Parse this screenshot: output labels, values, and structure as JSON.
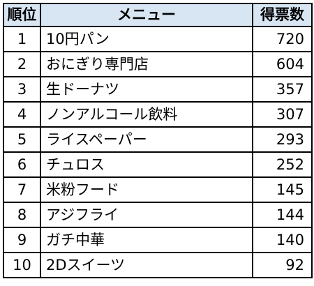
{
  "header": {
    "rank": "順位",
    "menu": "メニュー",
    "votes": "得票数"
  },
  "rows": [
    {
      "rank": "1",
      "menu": "10円パン",
      "votes": "720"
    },
    {
      "rank": "2",
      "menu": "おにぎり専門店",
      "votes": "604"
    },
    {
      "rank": "3",
      "menu": "生ドーナツ",
      "votes": "357"
    },
    {
      "rank": "4",
      "menu": "ノンアルコール飲料",
      "votes": "307"
    },
    {
      "rank": "5",
      "menu": "ライスペーパー",
      "votes": "293"
    },
    {
      "rank": "6",
      "menu": "チュロス",
      "votes": "252"
    },
    {
      "rank": "7",
      "menu": "米粉フード",
      "votes": "145"
    },
    {
      "rank": "8",
      "menu": "アジフライ",
      "votes": "144"
    },
    {
      "rank": "9",
      "menu": "ガチ中華",
      "votes": "140"
    },
    {
      "rank": "10",
      "menu": "2Dスイーツ",
      "votes": "92"
    }
  ],
  "colors": {
    "header_background": "#d8e6f4",
    "border": "#000000"
  }
}
